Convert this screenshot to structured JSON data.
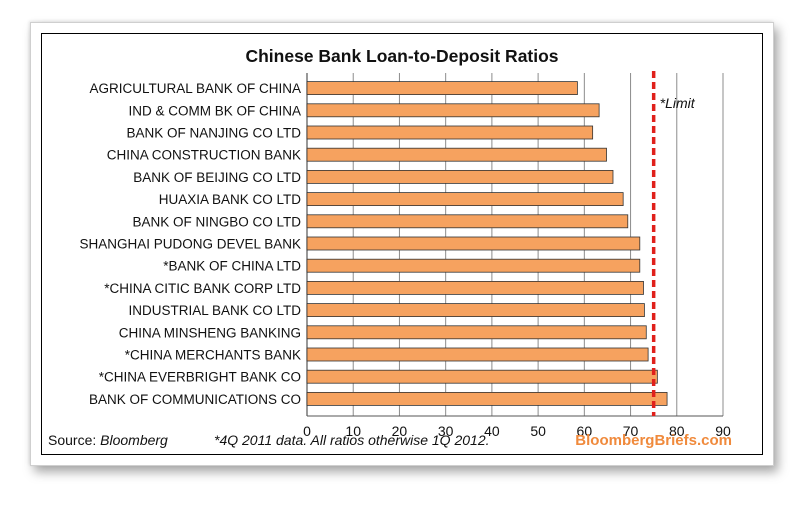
{
  "chart_data": {
    "type": "bar",
    "orientation": "horizontal",
    "title": "Chinese Bank Loan-to-Deposit Ratios",
    "categories": [
      "AGRICULTURAL BANK OF CHINA",
      "IND & COMM BK OF CHINA",
      "BANK OF NANJING CO LTD",
      "CHINA CONSTRUCTION BANK",
      "BANK OF BEIJING CO LTD",
      "HUAXIA BANK CO LTD",
      "BANK OF NINGBO CO LTD",
      "SHANGHAI PUDONG DEVEL BANK",
      "*BANK OF CHINA LTD",
      "*CHINA CITIC BANK CORP LTD",
      "INDUSTRIAL BANK CO LTD",
      "CHINA MINSHENG BANKING",
      "*CHINA MERCHANTS BANK",
      "*CHINA EVERBRIGHT BANK CO",
      "BANK OF COMMUNICATIONS CO"
    ],
    "values": [
      58.5,
      63.2,
      61.8,
      64.8,
      66.2,
      68.4,
      69.4,
      72.0,
      72.0,
      72.8,
      73.0,
      73.4,
      73.8,
      75.8,
      77.9
    ],
    "xlim": [
      0,
      90
    ],
    "xticks": [
      "0",
      "10",
      "20",
      "30",
      "40",
      "50",
      "60",
      "70",
      "80",
      "90"
    ],
    "grid": "vertical",
    "reference_line": {
      "value": 75,
      "label": "*Limit",
      "color": "#e0201b"
    },
    "bar_color": "#f6a25f",
    "bar_edge_color": "#333333"
  },
  "footer": {
    "source_prefix": "Source: ",
    "source_name": "Bloomberg",
    "note": "*4Q 2011 data. All ratios otherwise 1Q 2012.",
    "brand": "BloombergBriefs.com"
  },
  "colors": {
    "accent": "#f08a3c"
  }
}
